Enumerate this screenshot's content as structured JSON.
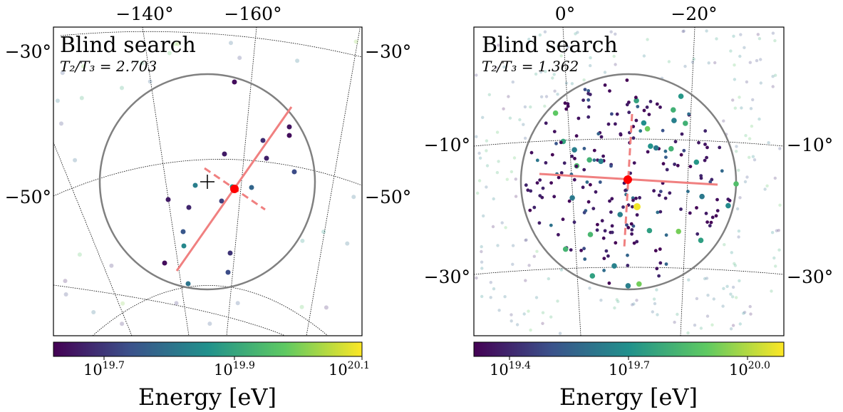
{
  "chart_data": [
    {
      "type": "scatter",
      "title": "Blind search",
      "subtitle": "T₂/T₃ = 2.703",
      "longitude_tick_labels": [
        "−140°",
        "−160°"
      ],
      "latitude_tick_labels_left": [
        "−30°",
        "−50°"
      ],
      "latitude_tick_labels_right": [
        "−30°",
        "−50°"
      ],
      "colorbar_label": "Energy [eV]",
      "colorbar_tick_labels": [
        {
          "base": "10",
          "exp": "19.7"
        },
        {
          "base": "10",
          "exp": "19.9"
        },
        {
          "base": "10",
          "exp": "20.1"
        }
      ],
      "colorbar_range_log10_eV": [
        19.58,
        20.1
      ],
      "colormap": "viridis",
      "search_circle": true,
      "centroid_marker": "red-dot",
      "event_log10_energy": [
        19.6,
        19.62,
        19.65,
        19.6,
        19.63,
        19.7,
        19.8,
        19.85,
        19.75,
        19.68,
        19.62,
        19.64,
        19.72,
        19.82,
        19.6,
        19.66,
        19.7,
        19.78,
        19.61
      ]
    },
    {
      "type": "scatter",
      "title": "Blind search",
      "subtitle": "T₂/T₃ = 1.362",
      "longitude_tick_labels": [
        "0°",
        "−20°"
      ],
      "latitude_tick_labels_left": [
        "−10°",
        "−30°"
      ],
      "latitude_tick_labels_right": [
        "−10°",
        "−30°"
      ],
      "colorbar_label": "Energy [eV]",
      "colorbar_tick_labels": [
        {
          "base": "10",
          "exp": "19.4"
        },
        {
          "base": "10",
          "exp": "19.7"
        },
        {
          "base": "10",
          "exp": "20.0"
        }
      ],
      "colorbar_range_log10_eV": [
        19.3,
        20.08
      ],
      "colormap": "viridis",
      "search_circle": true,
      "centroid_marker": "red-dot",
      "n_events_in_circle": 230
    }
  ],
  "colors": {
    "circle": "#808080",
    "axis_fit": "#f08080",
    "centroid": "#ff0000",
    "viridis": [
      "#440154",
      "#3b528b",
      "#21918c",
      "#5ec962",
      "#fde725"
    ]
  }
}
